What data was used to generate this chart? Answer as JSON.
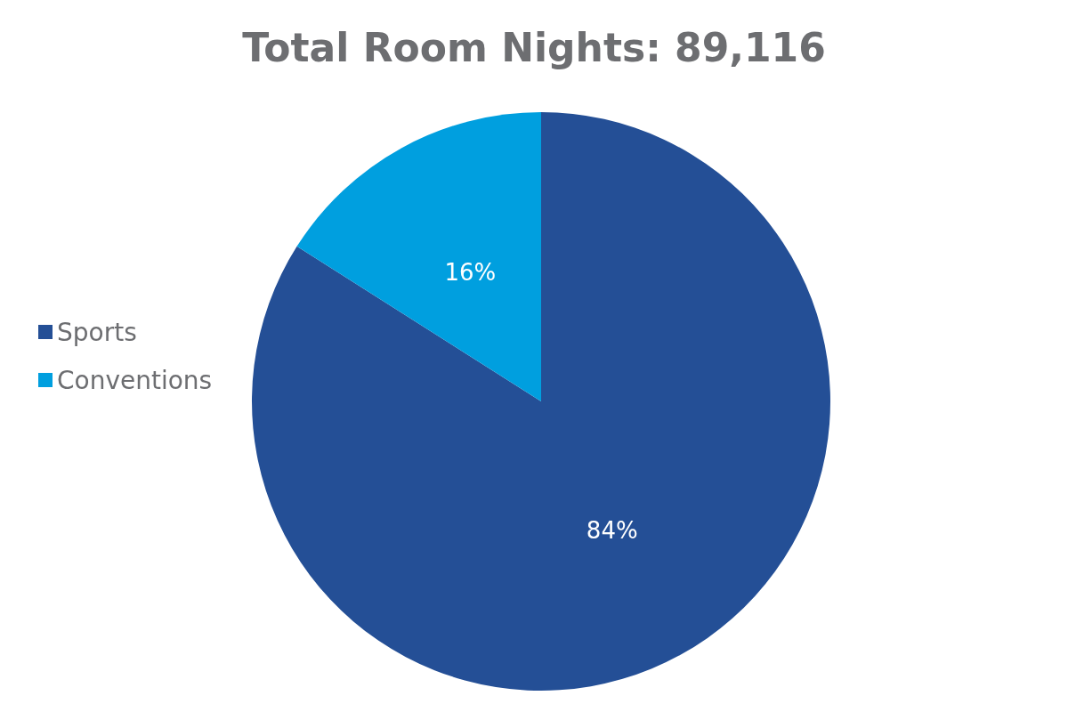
{
  "chart_data": {
    "type": "pie",
    "title": "Total Room Nights: 89,116",
    "categories": [
      "Sports",
      "Conventions"
    ],
    "values": [
      84,
      16
    ],
    "colors": [
      "#244f96",
      "#009fdf"
    ],
    "value_labels": [
      "84%",
      "16%"
    ],
    "legend": "left"
  }
}
